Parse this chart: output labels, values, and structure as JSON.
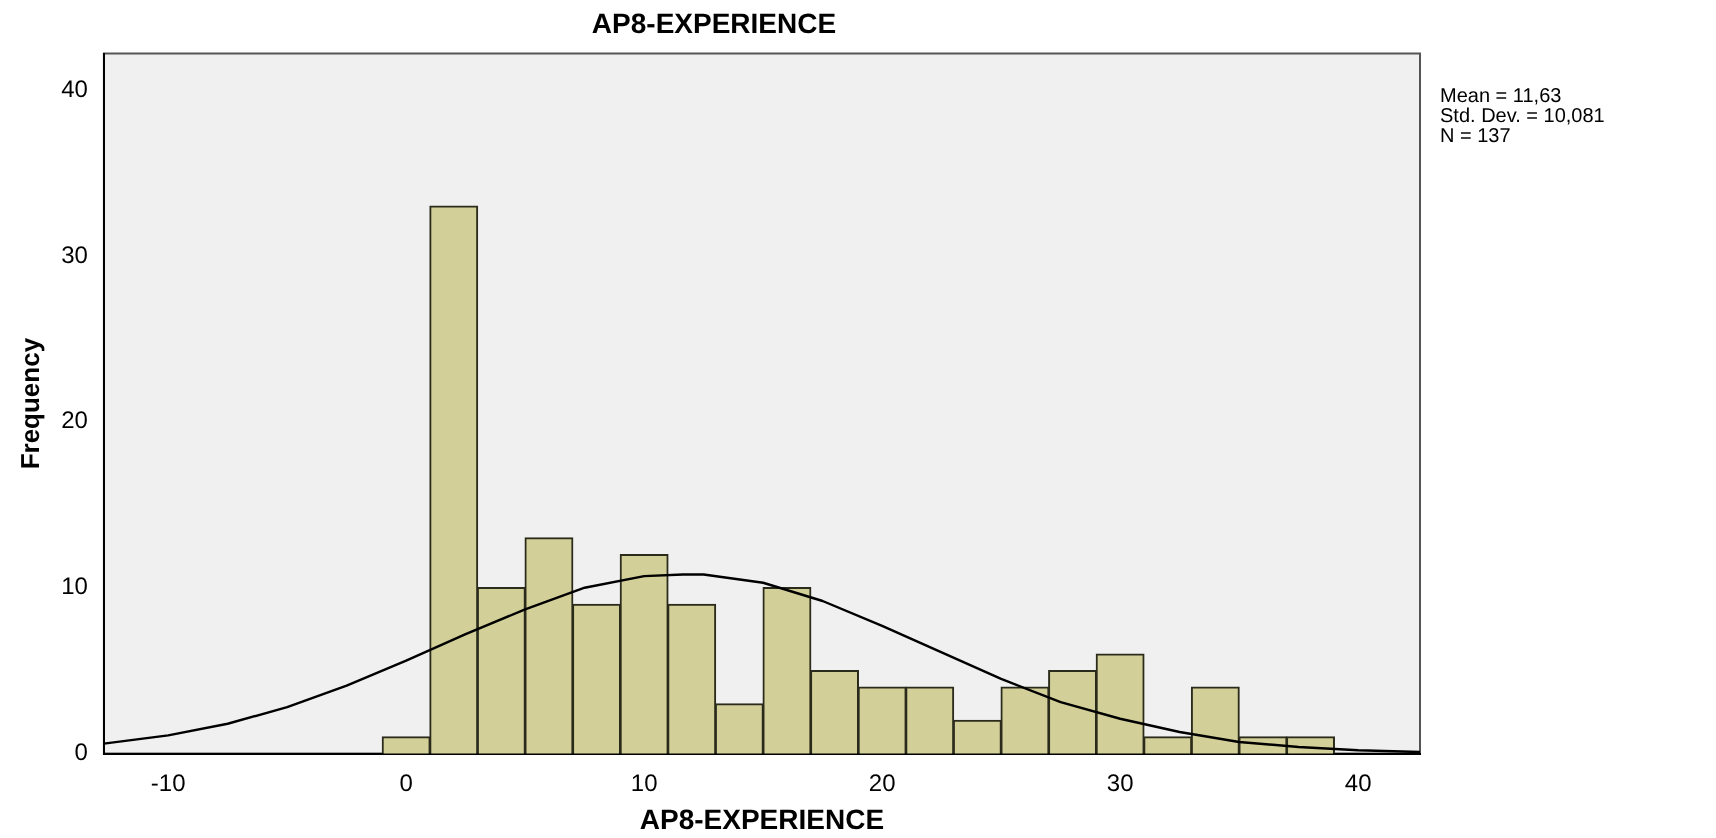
{
  "chart_data": {
    "type": "histogram",
    "title": "AP8-EXPERIENCE",
    "xlabel": "AP8-EXPERIENCE",
    "ylabel": "Frequency",
    "bins": [
      -1,
      1,
      3,
      5,
      7,
      9,
      11,
      13,
      15,
      17,
      19,
      21,
      23,
      25,
      27,
      29,
      31,
      33,
      35,
      37,
      39
    ],
    "values": [
      1,
      33,
      10,
      13,
      9,
      12,
      9,
      3,
      10,
      5,
      4,
      4,
      2,
      4,
      5,
      6,
      1,
      4,
      1,
      1
    ],
    "color": "#d3cf98",
    "series": [
      {
        "type": "line",
        "color": "#000000",
        "marker": "none",
        "x": [
          -12.7,
          -10,
          -7.5,
          -5,
          -2.5,
          0,
          2.5,
          5,
          7.5,
          10,
          11.63,
          12.5,
          15,
          17.5,
          20,
          22.5,
          25,
          27.5,
          30,
          32.5,
          35,
          37.5,
          40,
          42.6
        ],
        "values": [
          0.6,
          1.1,
          1.8,
          2.8,
          4.1,
          5.6,
          7.2,
          8.7,
          10,
          10.7,
          10.8,
          10.8,
          10.3,
          9.2,
          7.7,
          6.1,
          4.5,
          3.1,
          2.1,
          1.3,
          0.7,
          0.4,
          0.2,
          0.1
        ]
      }
    ],
    "xlim": [
      -12.7,
      42.6
    ],
    "ylim": [
      0,
      42.2
    ],
    "xticks": [
      -10,
      0,
      10,
      20,
      30,
      40
    ],
    "yticks": [
      0,
      10,
      20,
      30,
      40
    ],
    "annotations": [
      "Mean = 11,63",
      "Std. Dev. = 10,081",
      "N = 137"
    ]
  }
}
